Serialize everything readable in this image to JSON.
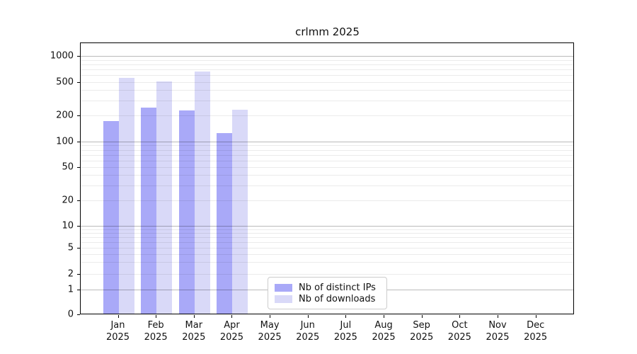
{
  "chart_data": {
    "type": "bar",
    "title": "crlmm 2025",
    "categories": [
      "Jan",
      "Feb",
      "Mar",
      "Apr",
      "May",
      "Jun",
      "Jul",
      "Aug",
      "Sep",
      "Oct",
      "Nov",
      "Dec"
    ],
    "x_tick_year": "2025",
    "series": [
      {
        "name": "Nb of distinct IPs",
        "color": "#a9a9f8",
        "values": [
          172,
          248,
          230,
          125,
          null,
          null,
          null,
          null,
          null,
          null,
          null,
          null
        ]
      },
      {
        "name": "Nb of downloads",
        "color": "#d9d9f8",
        "values": [
          560,
          509,
          662,
          234,
          null,
          null,
          null,
          null,
          null,
          null,
          null,
          null
        ]
      }
    ],
    "xlabel": "",
    "ylabel": "",
    "y_ticks": [
      0,
      1,
      2,
      5,
      10,
      20,
      50,
      100,
      200,
      500,
      1000
    ],
    "ylim": [
      0,
      1300
    ],
    "yscale": "log-like",
    "grid": "horizontal",
    "legend_position": "lower center"
  }
}
